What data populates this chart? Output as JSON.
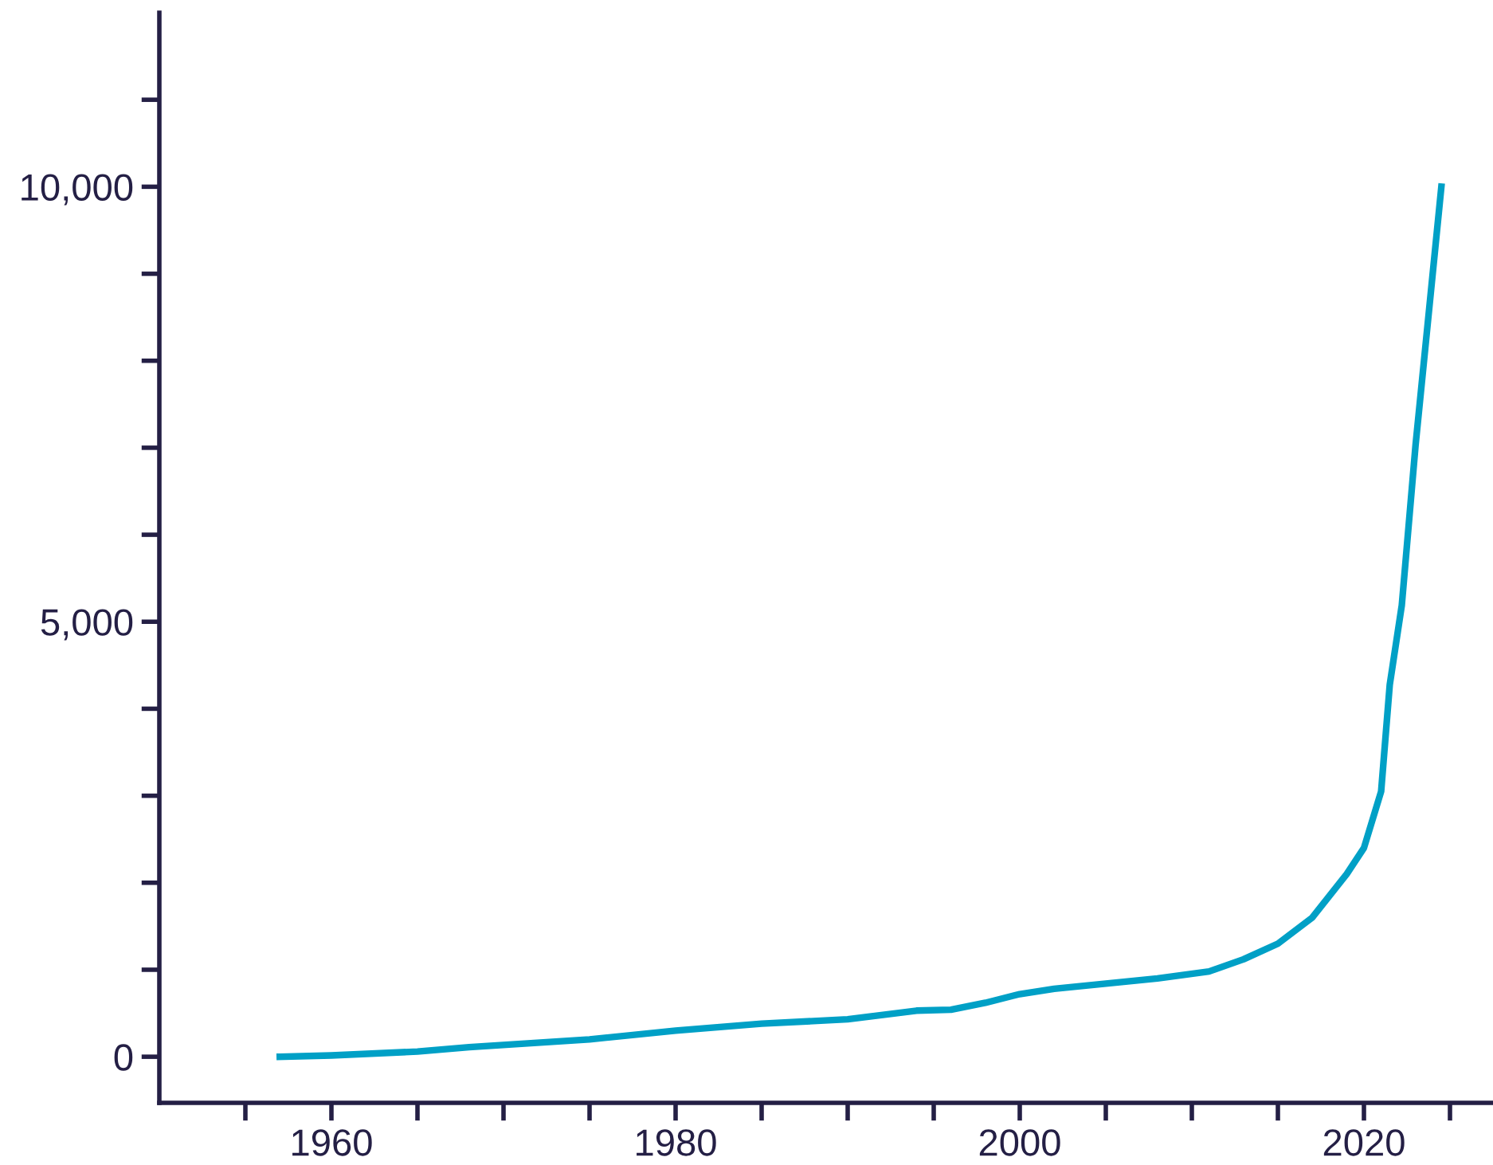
{
  "chart_data": {
    "type": "line",
    "x": [
      1957,
      1960,
      1965,
      1968,
      1975,
      1980,
      1985,
      1990,
      1994,
      1996,
      1998,
      2000,
      2002,
      2005,
      2008,
      2011,
      2013,
      2015,
      2017,
      2018,
      2019,
      2020,
      2021,
      2021.5,
      2022.2,
      2023,
      2024.5
    ],
    "series": [
      {
        "color": "#00a0c6",
        "values": [
          0,
          15,
          60,
          110,
          200,
          300,
          380,
          430,
          530,
          540,
          620,
          720,
          780,
          840,
          900,
          980,
          1120,
          1300,
          1600,
          1850,
          2100,
          2400,
          3050,
          4275,
          5190,
          7030,
          10000
        ]
      }
    ],
    "xlim": [
      1950,
      2027.5
    ],
    "ylim": [
      -530,
      12000
    ],
    "xticks": [
      {
        "value": 1955,
        "label": null
      },
      1960,
      {
        "value": 1965,
        "label": null
      },
      {
        "value": 1970,
        "label": null
      },
      {
        "value": 1975,
        "label": null
      },
      1980,
      {
        "value": 1985,
        "label": null
      },
      {
        "value": 1990,
        "label": null
      },
      {
        "value": 1995,
        "label": null
      },
      2000,
      {
        "value": 2005,
        "label": null
      },
      {
        "value": 2010,
        "label": null
      },
      {
        "value": 2015,
        "label": null
      },
      2020,
      {
        "value": 2025,
        "label": null
      }
    ],
    "yticks": [
      {
        "value": 0,
        "label": "0"
      },
      {
        "value": 1000,
        "label": null
      },
      {
        "value": 2000,
        "label": null
      },
      {
        "value": 3000,
        "label": null
      },
      {
        "value": 4000,
        "label": null
      },
      {
        "value": 5000,
        "label": "5,000"
      },
      {
        "value": 6000,
        "label": null
      },
      {
        "value": 7000,
        "label": null
      },
      {
        "value": 8000,
        "label": null
      },
      {
        "value": 9000,
        "label": null
      },
      {
        "value": 10000,
        "label": "10,000"
      },
      {
        "value": 11000,
        "label": null
      }
    ],
    "grid": false,
    "legend": false,
    "marker": "none",
    "line_style": "solid"
  }
}
